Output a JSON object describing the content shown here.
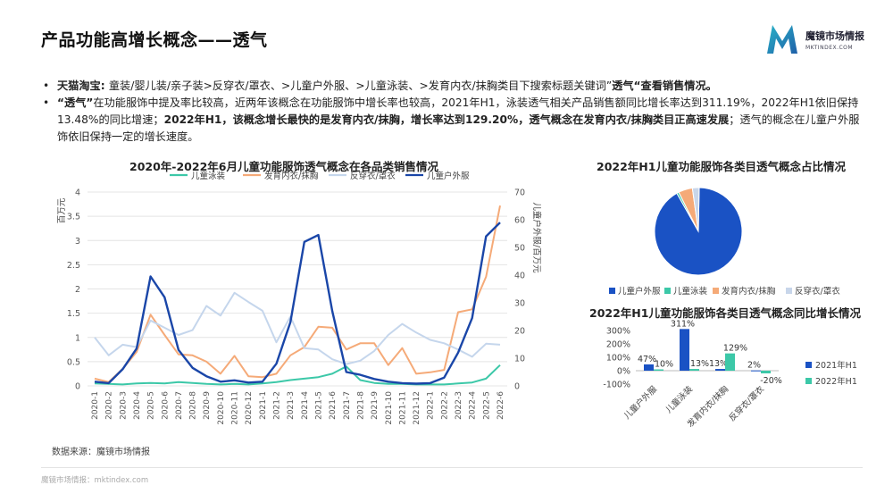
{
  "page": {
    "title": "产品功能高增长概念——透气",
    "logo_name": "魔镜市场情报",
    "logo_url": "MKTINDEX.COM",
    "source": "数据来源：魔镜市场情报",
    "footer": "魔镜市场情报：mktindex.com"
  },
  "bullets": [
    [
      {
        "t": "天猫淘宝: ",
        "b": true
      },
      {
        "t": "童装/婴儿装/亲子装>反穿衣/罩衣、>儿童户外服、>儿童泳装、>发育内衣/抹胸类目下搜索标题关键词”",
        "b": false
      },
      {
        "t": "透气“查看销售情况。",
        "b": true
      }
    ],
    [
      {
        "t": "“透气”",
        "b": true
      },
      {
        "t": "在功能服饰中提及率比较高，近两年该概念在功能服饰中增长率也较高，2021年H1，泳装透气相关产品销售额同比增长率达到311.19%，2022年H1依旧保持13.48%的同比增速；",
        "b": false
      },
      {
        "t": "2022年H1，该概念增长最快的是发育内衣/抹胸，增长率达到129.20%，透气概念在发育内衣/抹胸类目正高速发展",
        "b": true
      },
      {
        "t": "；透气的概念在儿童户外服饰依旧保持一定的增长速度。",
        "b": false
      }
    ]
  ],
  "chart_data": [
    {
      "type": "line",
      "title": "2020年-2022年6月儿童功能服饰透气概念在各品类销售情况",
      "ylabel": "百万元",
      "y2label": "儿童户外服/百万元",
      "ylim": [
        0,
        4
      ],
      "y2lim": [
        0,
        70
      ],
      "yticks": [
        "0",
        "0.5",
        "1",
        "1.5",
        "2",
        "2.5",
        "3",
        "3.5",
        "4"
      ],
      "y2ticks": [
        "0",
        "10",
        "20",
        "30",
        "40",
        "50",
        "60",
        "70"
      ],
      "legend_position": "top",
      "grid": true,
      "x": [
        "2020-1",
        "2020-2",
        "2020-3",
        "2020-4",
        "2020-5",
        "2020-6",
        "2020-7",
        "2020-8",
        "2020-9",
        "2020-10",
        "2020-11",
        "2020-12",
        "2021-1",
        "2021-2",
        "2021-3",
        "2021-4",
        "2021-5",
        "2021-6",
        "2021-7",
        "2021-8",
        "2021-9",
        "2021-10",
        "2021-11",
        "2021-12",
        "2022-1",
        "2022-2",
        "2022-3",
        "2022-4",
        "2022-5",
        "2022-6"
      ],
      "series": [
        {
          "name": "儿童泳装",
          "axis": "left",
          "color": "#3cc8a8",
          "values": [
            0.05,
            0.04,
            0.03,
            0.05,
            0.06,
            0.05,
            0.08,
            0.06,
            0.04,
            0.03,
            0.04,
            0.03,
            0.05,
            0.08,
            0.12,
            0.15,
            0.18,
            0.25,
            0.4,
            0.12,
            0.06,
            0.04,
            0.04,
            0.03,
            0.03,
            0.03,
            0.05,
            0.07,
            0.15,
            0.43
          ]
        },
        {
          "name": "发育内衣/抹胸",
          "axis": "left",
          "color": "#f5aa78",
          "values": [
            0.15,
            0.08,
            0.35,
            0.7,
            1.47,
            1.05,
            0.65,
            0.63,
            0.5,
            0.25,
            0.62,
            0.2,
            0.18,
            0.25,
            0.63,
            0.8,
            1.22,
            1.2,
            0.75,
            0.88,
            0.88,
            0.43,
            0.78,
            0.25,
            0.28,
            0.33,
            1.52,
            1.58,
            2.25,
            3.72
          ]
        },
        {
          "name": "反穿衣/罩衣",
          "axis": "left",
          "color": "#c5d6ec",
          "values": [
            1.0,
            0.63,
            0.85,
            0.8,
            1.35,
            1.2,
            1.05,
            1.15,
            1.65,
            1.45,
            1.92,
            1.73,
            1.55,
            0.9,
            1.43,
            0.78,
            0.75,
            0.55,
            0.45,
            0.52,
            0.72,
            1.05,
            1.28,
            1.1,
            0.95,
            0.88,
            0.75,
            0.6,
            0.87,
            0.85
          ]
        },
        {
          "name": "儿童户外服",
          "axis": "right",
          "color": "#1a46a8",
          "values": [
            1.5,
            1.0,
            6.0,
            13.5,
            39.5,
            32.0,
            13.0,
            6.5,
            3.5,
            1.5,
            2.0,
            1.2,
            1.5,
            8.0,
            23.0,
            52.0,
            54.5,
            27.0,
            5.0,
            4.0,
            2.5,
            1.5,
            1.0,
            0.8,
            1.0,
            3.0,
            12.0,
            24.5,
            54.0,
            59.0
          ]
        }
      ]
    },
    {
      "type": "pie",
      "title": "2022年H1儿童功能服饰各类目透气概念占比情况",
      "legend_position": "bottom",
      "categories": [
        "儿童户外服",
        "儿童泳装",
        "发育内衣/抹胸",
        "反穿衣/罩衣"
      ],
      "colors": [
        "#1a52c4",
        "#3cc8a8",
        "#f5aa78",
        "#c8d6ea"
      ],
      "values": [
        91.5,
        0.8,
        5.2,
        2.5
      ]
    },
    {
      "type": "bar",
      "title": "2022年H1儿童功能服饰各类目透气概念同比增长情况",
      "categories": [
        "儿童户外服",
        "儿童泳装",
        "发育内衣/抹胸",
        "反穿衣/罩衣"
      ],
      "ylim": [
        -100,
        300
      ],
      "yticks": [
        "300%",
        "200%",
        "100%",
        "0%",
        "-100%"
      ],
      "legend_position": "right",
      "series": [
        {
          "name": "2021年H1",
          "color": "#1a52c4",
          "values": [
            47,
            311,
            13,
            2
          ],
          "labels": [
            "47%",
            "311%",
            "13%",
            "2%"
          ]
        },
        {
          "name": "2022年H1",
          "color": "#3cc8a8",
          "values": [
            10,
            13,
            129,
            -20
          ],
          "labels": [
            "10%",
            "13%",
            "129%",
            "-20%"
          ]
        }
      ]
    }
  ]
}
